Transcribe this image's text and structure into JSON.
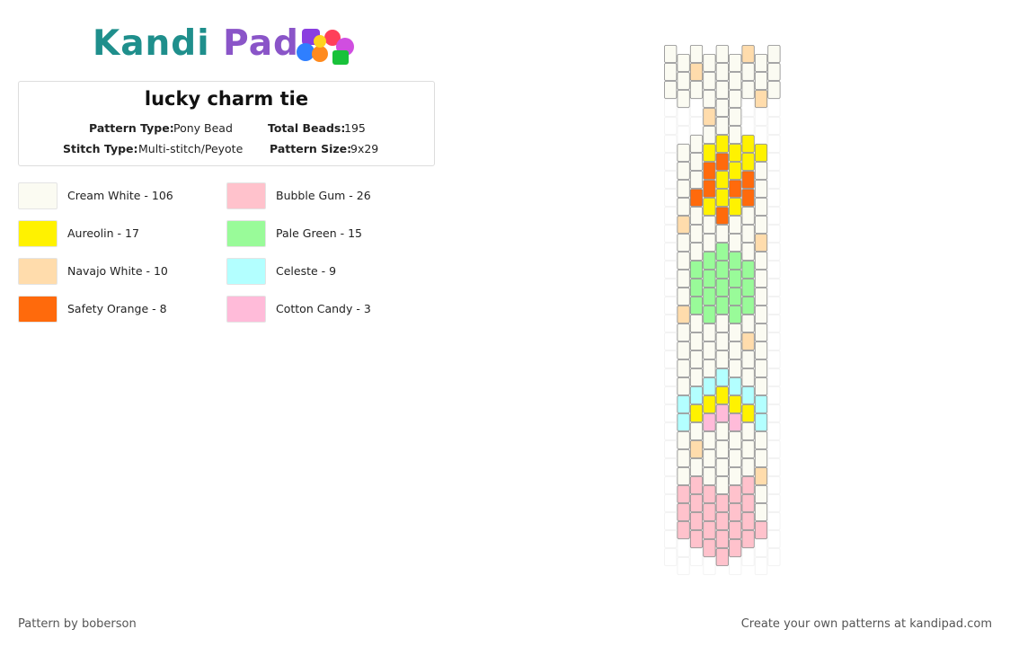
{
  "logo": {
    "part1": "Kandi",
    "part2": "Pad"
  },
  "header": {
    "title": "lucky charm tie"
  },
  "info": [
    {
      "label": "Pattern Type:",
      "value": "Pony Bead"
    },
    {
      "label": "Total Beads:",
      "value": "195"
    },
    {
      "label": "Stitch Type:",
      "value": "Multi-stitch/Peyote"
    },
    {
      "label": "Pattern Size:",
      "value": "9x29"
    }
  ],
  "legend": [
    {
      "label": "Cream White - 106",
      "color": "#fbfbf2"
    },
    {
      "label": "Aureolin - 17",
      "color": "#fff200"
    },
    {
      "label": "Navajo White - 10",
      "color": "#ffdcac"
    },
    {
      "label": "Safety Orange - 8",
      "color": "#ff6a0c"
    },
    {
      "label": "Bubble Gum - 26",
      "color": "#ffc2cc"
    },
    {
      "label": "Pale Green - 15",
      "color": "#99fb99"
    },
    {
      "label": "Celeste - 9",
      "color": "#b3ffff"
    },
    {
      "label": "Cotton Candy - 3",
      "color": "#ffbbd9"
    }
  ],
  "footer": {
    "left": "Pattern by boberson",
    "right": "Create your own patterns at kandipad.com"
  }
}
